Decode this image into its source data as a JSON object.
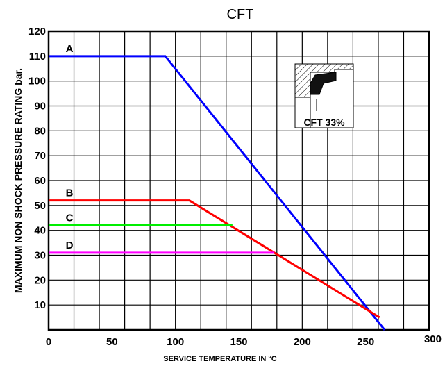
{
  "chart_data": {
    "type": "line",
    "title": "CFT",
    "xlabel": "SERVICE TEMPERATURE IN °C",
    "ylabel": "MAXIMUM NON SHOCK PRESSURE RATING bar.",
    "xlim": [
      0,
      300
    ],
    "ylim": [
      0,
      120
    ],
    "x_ticks": [
      0,
      50,
      100,
      150,
      200,
      250,
      300
    ],
    "y_ticks": [
      10,
      20,
      30,
      40,
      50,
      60,
      70,
      80,
      90,
      100,
      110,
      120
    ],
    "grid": true,
    "series": [
      {
        "name": "A",
        "color": "#0000ff",
        "points": [
          [
            0,
            110
          ],
          [
            92,
            110
          ],
          [
            265,
            0
          ]
        ]
      },
      {
        "name": "B",
        "color": "#ff0000",
        "points": [
          [
            0,
            52
          ],
          [
            111,
            52
          ],
          [
            261,
            5
          ]
        ]
      },
      {
        "name": "C",
        "color": "#00ee00",
        "points": [
          [
            0,
            42
          ],
          [
            145,
            42
          ]
        ]
      },
      {
        "name": "D",
        "color": "#ff00ff",
        "points": [
          [
            0,
            31
          ],
          [
            178,
            31
          ]
        ]
      }
    ],
    "inset": {
      "label": "CFT 33%"
    }
  }
}
